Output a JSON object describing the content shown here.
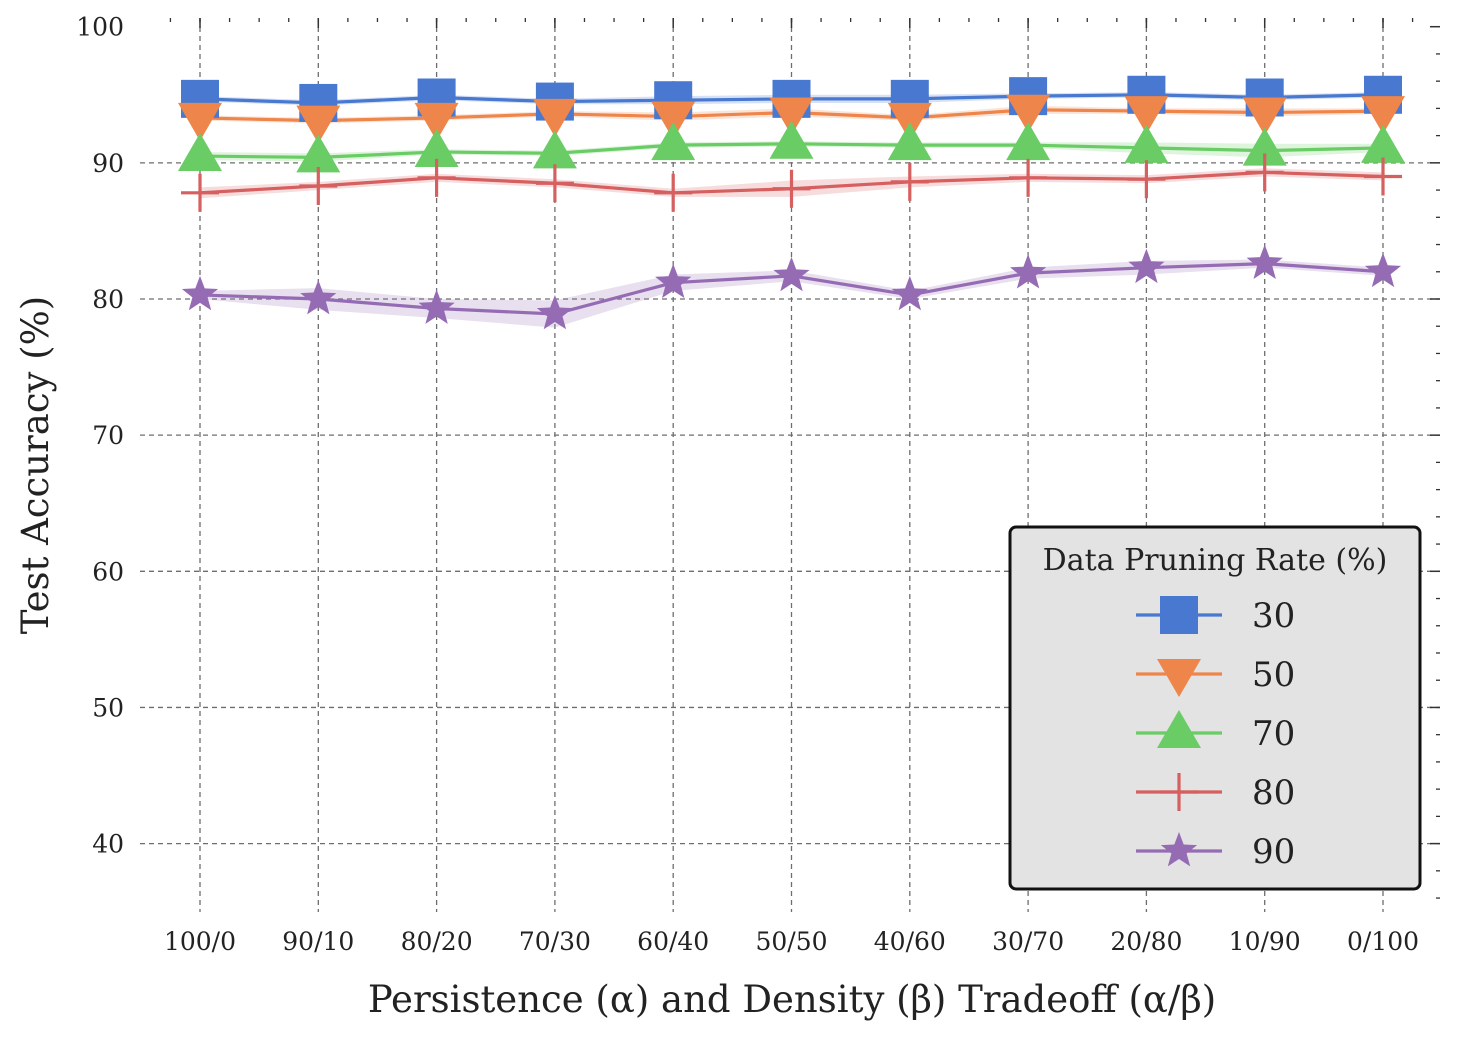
{
  "chart_data": {
    "type": "line",
    "title": "",
    "xlabel": "Persistence (α) and Density (β) Tradeoff (α/β)",
    "ylabel": "Test Accuracy (%)",
    "categories": [
      "100/0",
      "90/10",
      "80/20",
      "70/30",
      "60/40",
      "50/50",
      "40/60",
      "30/70",
      "20/80",
      "10/90",
      "0/100"
    ],
    "ylim": [
      35,
      100
    ],
    "yticks": [
      40,
      50,
      60,
      70,
      80,
      90,
      100
    ],
    "grid": true,
    "legend": {
      "title": "Data Pruning Rate (%)",
      "position": "lower-right"
    },
    "series": [
      {
        "name": "30",
        "color": "#4878d0",
        "marker": "square",
        "values": [
          94.7,
          94.4,
          94.8,
          94.5,
          94.6,
          94.7,
          94.7,
          94.9,
          95.0,
          94.8,
          95.0
        ],
        "band": [
          0.2,
          0.2,
          0.2,
          0.2,
          0.3,
          0.3,
          0.3,
          0.2,
          0.2,
          0.2,
          0.2
        ]
      },
      {
        "name": "50",
        "color": "#ee854a",
        "marker": "triangle-down",
        "values": [
          93.3,
          93.1,
          93.3,
          93.6,
          93.4,
          93.7,
          93.3,
          93.9,
          93.8,
          93.7,
          93.8
        ],
        "band": [
          0.2,
          0.2,
          0.2,
          0.2,
          0.3,
          0.3,
          0.2,
          0.3,
          0.2,
          0.3,
          0.2
        ]
      },
      {
        "name": "70",
        "color": "#6acc64",
        "marker": "triangle-up",
        "values": [
          90.5,
          90.4,
          90.8,
          90.7,
          91.3,
          91.4,
          91.3,
          91.3,
          91.1,
          90.9,
          91.1
        ],
        "band": [
          0.3,
          0.3,
          0.2,
          0.2,
          0.2,
          0.2,
          0.2,
          0.2,
          0.4,
          0.5,
          0.3
        ]
      },
      {
        "name": "80",
        "color": "#d65f5f",
        "marker": "plus",
        "values": [
          87.8,
          88.3,
          88.9,
          88.5,
          87.8,
          88.1,
          88.6,
          88.9,
          88.8,
          89.3,
          89.0
        ],
        "band": [
          0.4,
          0.3,
          0.3,
          0.3,
          0.3,
          0.6,
          0.4,
          0.3,
          0.3,
          0.3,
          0.3
        ]
      },
      {
        "name": "90",
        "color": "#956cb4",
        "marker": "star",
        "values": [
          80.3,
          80.0,
          79.3,
          78.9,
          81.2,
          81.7,
          80.3,
          81.9,
          82.3,
          82.6,
          82.0
        ],
        "band": [
          0.3,
          0.8,
          0.7,
          1.0,
          0.6,
          0.4,
          0.3,
          0.4,
          0.5,
          0.3,
          0.3
        ]
      }
    ]
  }
}
